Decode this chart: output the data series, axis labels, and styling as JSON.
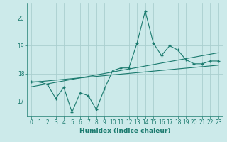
{
  "xlabel": "Humidex (Indice chaleur)",
  "bg_color": "#cceaea",
  "line_color": "#1a7a6e",
  "grid_color": "#aacfcf",
  "x_data": [
    0,
    1,
    2,
    3,
    4,
    5,
    6,
    7,
    8,
    9,
    10,
    11,
    12,
    13,
    14,
    15,
    16,
    17,
    18,
    19,
    20,
    21,
    22,
    23
  ],
  "y_data": [
    17.7,
    17.7,
    17.6,
    17.1,
    17.5,
    16.6,
    17.3,
    17.2,
    16.7,
    17.45,
    18.1,
    18.2,
    18.2,
    19.1,
    20.25,
    19.1,
    18.65,
    19.0,
    18.85,
    18.5,
    18.35,
    18.35,
    18.45,
    18.45
  ],
  "trend1_x": [
    0,
    23
  ],
  "trend1_y": [
    17.68,
    18.3
  ],
  "trend2_x": [
    0,
    23
  ],
  "trend2_y": [
    17.52,
    18.75
  ],
  "ylim": [
    16.45,
    20.55
  ],
  "xlim": [
    -0.5,
    23.5
  ],
  "yticks": [
    17,
    18,
    19,
    20
  ],
  "xticks": [
    0,
    1,
    2,
    3,
    4,
    5,
    6,
    7,
    8,
    9,
    10,
    11,
    12,
    13,
    14,
    15,
    16,
    17,
    18,
    19,
    20,
    21,
    22,
    23
  ],
  "tick_fontsize": 5.5,
  "label_fontsize": 6.5,
  "marker": "+"
}
